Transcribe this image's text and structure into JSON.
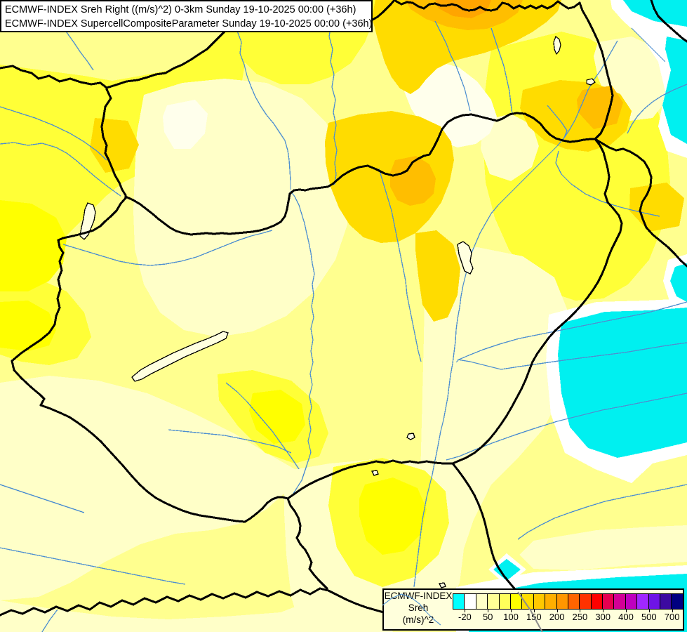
{
  "header": {
    "line1": "ECMWF-INDEX Sreh Right ((m/s)^2) 0-3km Sunday 19-10-2025 00:00 (+36h)",
    "line2": "ECMWF-INDEX SupercellCompositeParameter Sunday 19-10-2025 00:00 (+36h)"
  },
  "legend": {
    "title_lines": [
      "ECMWF-INDEX",
      "Sreh",
      "(m/s)^2"
    ],
    "tick_labels": [
      "-20",
      "50",
      "100",
      "150",
      "200",
      "250",
      "300",
      "400",
      "500",
      "700"
    ],
    "colors": [
      "#00FFFF",
      "#FFFFFF",
      "#FFFFC8",
      "#FFFF96",
      "#FFFF5A",
      "#FFFF00",
      "#FFDC00",
      "#FFC800",
      "#FFAF00",
      "#FF9600",
      "#FF6400",
      "#FF3200",
      "#FF0000",
      "#E60050",
      "#D20096",
      "#BE00BE",
      "#A028FF",
      "#6E14E6",
      "#3C0AA0",
      "#000080"
    ]
  },
  "map_palette": {
    "base_yellow": "#FFFF8F",
    "bright_yellow": "#FFFF37",
    "core_yellow": "#FFFF00",
    "pale_yellow": "#FFFFC8",
    "near_white": "#FFFFEC",
    "gold": "#FFDC00",
    "amber": "#FFBE00",
    "orange": "#FFA500",
    "cyan": "#00F0F0",
    "white_fringe": "#FFFFFF",
    "border_black": "#000000",
    "river_blue": "#4E8FD0",
    "gray_line": "#8C8C8C"
  }
}
